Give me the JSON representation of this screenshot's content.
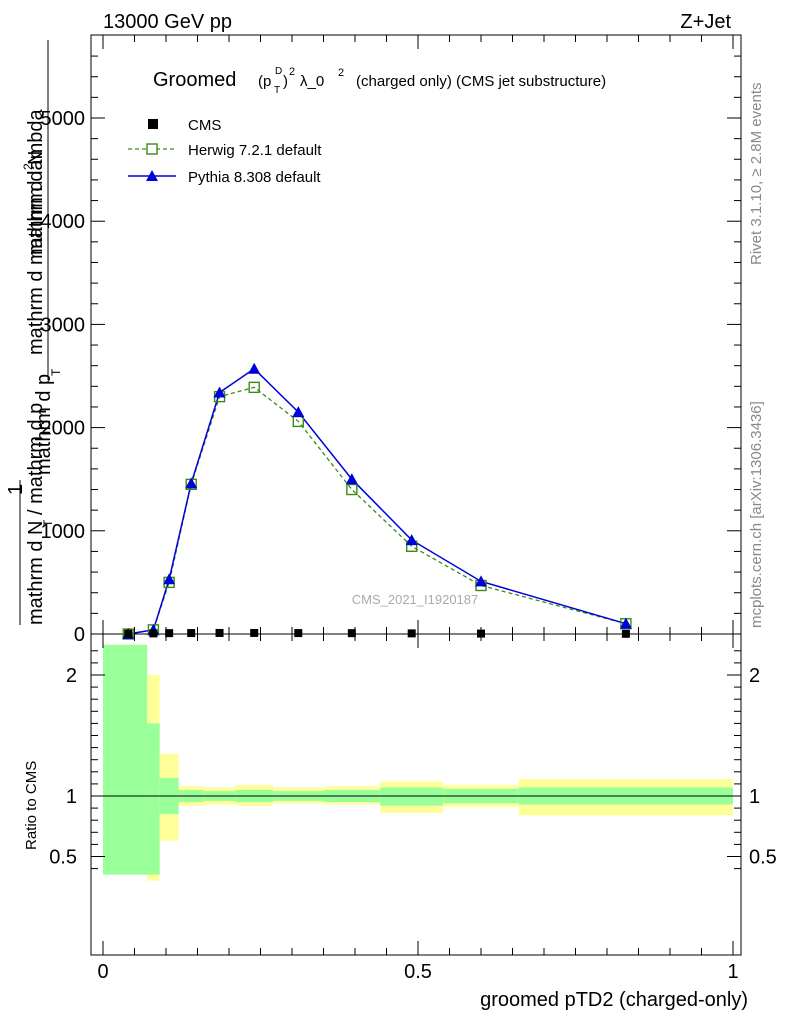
{
  "header": {
    "left": "13000 GeV pp",
    "right": "Z+Jet"
  },
  "side_labels": {
    "rivet": "Rivet 3.1.10, ≥ 2.8M events",
    "mcplots": "mcplots.cern.ch [arXiv:1306.3436]"
  },
  "title": {
    "main": "Groomed",
    "formula": "(p",
    "sup_d": "D",
    "sub_t": "T",
    "close": ")",
    "sup_2": "2",
    "lambda": "λ_0",
    "lambda_sup": "2",
    "suffix": "(charged only) (CMS jet substructure)"
  },
  "watermark": "CMS_2021_I1920187",
  "ylabel_top": {
    "numerator": "mathrm d",
    "numerator_sup": "2",
    "numerator_n": "N",
    "denominator": "mathrm d p",
    "denominator_sub": "T",
    "denominator_rest": "mathrm d mathrm d lambda",
    "prefix_numer": "1",
    "prefix_denom": "mathrm d N / mathrm d p",
    "prefix_denom_sub": "T"
  },
  "ylabel_ratio": "Ratio to CMS",
  "xlabel": "groomed pTD2 (charged-only)",
  "legend": {
    "cms": "CMS",
    "herwig": "Herwig 7.2.1 default",
    "pythia": "Pythia 8.308 default"
  },
  "colors": {
    "herwig": "#3a8c14",
    "pythia": "#0000dd",
    "band_inner": "#99ff99",
    "band_outer": "#ffff99",
    "data": "#000000"
  },
  "chart_data": {
    "type": "line",
    "x_range": [
      0,
      1
    ],
    "y_range": [
      0,
      5800
    ],
    "y_ticks": [
      0,
      1000,
      2000,
      3000,
      4000,
      5000
    ],
    "y_tick_labels": [
      "0",
      "1000",
      "2000",
      "3000",
      "4000",
      "5000"
    ],
    "x_ticks": [
      0,
      0.5,
      1
    ],
    "x_tick_labels": [
      "0",
      "0.5",
      "1"
    ],
    "cms": {
      "name": "CMS",
      "x": [
        0.04,
        0.08,
        0.105,
        0.14,
        0.185,
        0.24,
        0.31,
        0.395,
        0.49,
        0.6,
        0.83
      ],
      "y": [
        3,
        6,
        8,
        9,
        10,
        10,
        9,
        8,
        6,
        4,
        2
      ]
    },
    "herwig": {
      "name": "Herwig 7.2.1 default",
      "x": [
        0.04,
        0.08,
        0.105,
        0.14,
        0.185,
        0.24,
        0.31,
        0.395,
        0.49,
        0.6,
        0.83
      ],
      "y": [
        0,
        40,
        500,
        1450,
        2300,
        2390,
        2060,
        1400,
        850,
        470,
        100
      ]
    },
    "pythia": {
      "name": "Pythia 8.308 default",
      "x": [
        0.04,
        0.08,
        0.105,
        0.14,
        0.185,
        0.24,
        0.31,
        0.395,
        0.49,
        0.6,
        0.83
      ],
      "y": [
        0,
        40,
        530,
        1460,
        2340,
        2570,
        2150,
        1500,
        910,
        510,
        100
      ]
    },
    "ratio": {
      "y_range": [
        0.35,
        2.25
      ],
      "y_ticks": [
        0.5,
        1,
        2
      ],
      "y_tick_labels": [
        "0.5",
        "1",
        "2"
      ],
      "reference": 1,
      "bands": [
        {
          "x0": 0.0,
          "x1": 0.07,
          "inner": [
            0.35,
            2.25
          ],
          "outer": [
            0.35,
            2.25
          ]
        },
        {
          "x0": 0.07,
          "x1": 0.09,
          "inner": [
            0.35,
            1.6
          ],
          "outer": [
            0.3,
            2.0
          ]
        },
        {
          "x0": 0.09,
          "x1": 0.12,
          "inner": [
            0.85,
            1.15
          ],
          "outer": [
            0.63,
            1.35
          ]
        },
        {
          "x0": 0.12,
          "x1": 0.16,
          "inner": [
            0.95,
            1.05
          ],
          "outer": [
            0.92,
            1.08
          ]
        },
        {
          "x0": 0.16,
          "x1": 0.21,
          "inner": [
            0.96,
            1.04
          ],
          "outer": [
            0.93,
            1.07
          ]
        },
        {
          "x0": 0.21,
          "x1": 0.27,
          "inner": [
            0.95,
            1.05
          ],
          "outer": [
            0.92,
            1.09
          ]
        },
        {
          "x0": 0.27,
          "x1": 0.35,
          "inner": [
            0.96,
            1.04
          ],
          "outer": [
            0.94,
            1.07
          ]
        },
        {
          "x0": 0.35,
          "x1": 0.44,
          "inner": [
            0.95,
            1.05
          ],
          "outer": [
            0.93,
            1.08
          ]
        },
        {
          "x0": 0.44,
          "x1": 0.54,
          "inner": [
            0.92,
            1.07
          ],
          "outer": [
            0.86,
            1.12
          ]
        },
        {
          "x0": 0.54,
          "x1": 0.66,
          "inner": [
            0.94,
            1.06
          ],
          "outer": [
            0.91,
            1.09
          ]
        },
        {
          "x0": 0.66,
          "x1": 1.0,
          "inner": [
            0.93,
            1.07
          ],
          "outer": [
            0.84,
            1.14
          ]
        }
      ]
    }
  }
}
